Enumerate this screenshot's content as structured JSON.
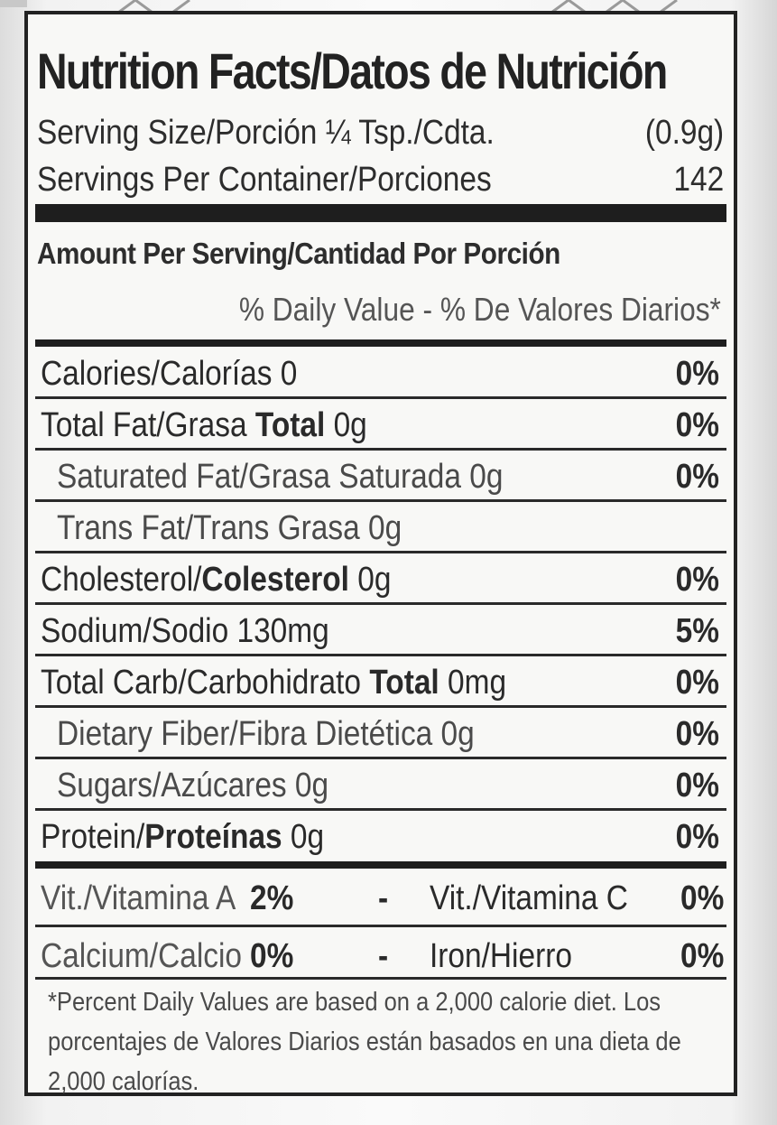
{
  "header": {
    "title": "Nutrition Facts/Datos de Nutrición",
    "serving_size_label": "Serving Size/Porción ¼ Tsp./Cdta.",
    "serving_size_value": "(0.9g)",
    "servings_label": "Servings Per Container/Porciones",
    "servings_value": "142"
  },
  "amount_header": "Amount Per Serving/Cantidad Por Porción",
  "dv_header": "% Daily Value - % De Valores Diarios*",
  "rows": [
    {
      "a": "Calories/Calorías",
      "b": "",
      "c": " 0",
      "pct": "0%"
    },
    {
      "a": "Total Fat/Grasa ",
      "b": "Total",
      "c": " 0g",
      "pct": "0%"
    },
    {
      "a": "Saturated Fat/Grasa Saturada 0g",
      "b": "",
      "c": "",
      "pct": "0%"
    },
    {
      "a": "Trans Fat/Trans Grasa 0g",
      "b": "",
      "c": "",
      "pct": ""
    },
    {
      "a": "Cholesterol/",
      "b": "Colesterol",
      "c": " 0g",
      "pct": "0%"
    },
    {
      "a": "Sodium/Sodio  130mg",
      "b": "",
      "c": "",
      "pct": "5%"
    },
    {
      "a": "Total Carb/Carbohidrato ",
      "b": "Total",
      "c": " 0mg",
      "pct": "0%"
    },
    {
      "a": "Dietary Fiber/Fibra Dietética 0g",
      "b": "",
      "c": "",
      "pct": "0%"
    },
    {
      "a": "Sugars/Azúcares 0g",
      "b": "",
      "c": "",
      "pct": "0%"
    },
    {
      "a": "Protein/",
      "b": "Proteínas",
      "c": " 0g",
      "pct": "0%"
    }
  ],
  "vitamins": [
    {
      "left_label": "Vit./Vitamina A",
      "left_value": "2%",
      "dash": "-",
      "right_label": "Vit./Vitamina C",
      "right_value": "0%"
    },
    {
      "left_label": "Calcium/Calcio",
      "left_value": "0%",
      "dash": "-",
      "right_label": "Iron/Hierro",
      "right_value": "0%"
    }
  ],
  "footnote": "*Percent Daily Values are based on a 2,000 calorie diet. Los porcentajes de Valores Diarios están basados en una dieta de 2,000 calorías."
}
